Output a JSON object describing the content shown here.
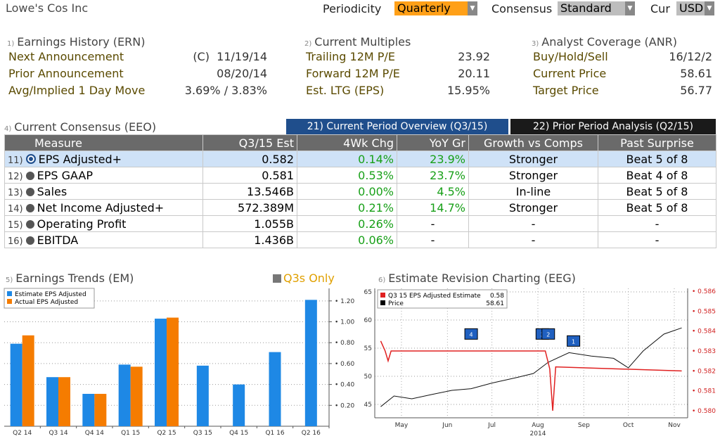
{
  "header": {
    "title": "Lowe's Cos Inc",
    "periodicity_label": "Periodicity",
    "periodicity_value": "Quarterly",
    "consensus_label": "Consensus",
    "consensus_value": "Standard",
    "cur_label": "Cur",
    "cur_value": "USD"
  },
  "earnings_history": {
    "number": "1)",
    "title": "Earnings History (ERN)",
    "rows": [
      {
        "label": "Next Announcement",
        "value": "(C)  11/19/14"
      },
      {
        "label": "Prior Announcement",
        "value": "08/20/14"
      },
      {
        "label": "Avg/Implied 1 Day Move",
        "value": "3.69% / 3.83%"
      }
    ]
  },
  "current_multiples": {
    "number": "2)",
    "title": "Current Multiples",
    "rows": [
      {
        "label": "Trailing 12M P/E",
        "value": "23.92"
      },
      {
        "label": "Forward 12M P/E",
        "value": "20.11"
      },
      {
        "label": "Est. LTG (EPS)",
        "value": "15.95%"
      }
    ]
  },
  "analyst_coverage": {
    "number": "3)",
    "title": "Analyst Coverage (ANR)",
    "rows": [
      {
        "label": "Buy/Hold/Sell",
        "value": "16/12/2"
      },
      {
        "label": "Current Price",
        "value": "58.61"
      },
      {
        "label": "Target Price",
        "value": "56.77"
      }
    ]
  },
  "consensus": {
    "number": "4)",
    "title": "Current Consensus (EEO)",
    "tab_current": "21) Current Period Overview (Q3/15)",
    "tab_prior": "22) Prior Period Analysis (Q2/15)",
    "columns": [
      "Measure",
      "Q3/15 Est",
      "4Wk Chg",
      "YoY Gr",
      "Growth vs Comps",
      "Past Surprise"
    ],
    "rows": [
      {
        "num": "11)",
        "measure": "EPS Adjusted+",
        "est": "0.582",
        "chg": "0.14%",
        "yoy": "23.9%",
        "comps": "Stronger",
        "surprise": "Beat 5 of 8"
      },
      {
        "num": "12)",
        "measure": "EPS GAAP",
        "est": "0.581",
        "chg": "0.53%",
        "yoy": "23.7%",
        "comps": "Stronger",
        "surprise": "Beat 4 of 8"
      },
      {
        "num": "13)",
        "measure": "Sales",
        "est": "13.546B",
        "chg": "0.00%",
        "yoy": "4.5%",
        "comps": "In-line",
        "surprise": "Beat 5 of 8"
      },
      {
        "num": "14)",
        "measure": "Net Income Adjusted+",
        "est": "572.389M",
        "chg": "0.21%",
        "yoy": "14.7%",
        "comps": "Stronger",
        "surprise": "Beat 5 of 8"
      },
      {
        "num": "15)",
        "measure": "Operating Profit",
        "est": "1.055B",
        "chg": "0.26%",
        "yoy": "-",
        "comps": "-",
        "surprise": "-"
      },
      {
        "num": "16)",
        "measure": "EBITDA",
        "est": "1.436B",
        "chg": "0.06%",
        "yoy": "-",
        "comps": "-",
        "surprise": "-"
      }
    ]
  },
  "earnings_trends": {
    "number": "5)",
    "title": "Earnings Trends (EM)",
    "toggle_label": "Q3s Only"
  },
  "estimate_revision": {
    "number": "6)",
    "title": "Estimate Revision Charting (EEG)"
  },
  "chart_data": [
    {
      "type": "bar",
      "categories": [
        "Q2 14",
        "Q3 14",
        "Q4 14",
        "Q1 15",
        "Q2 15",
        "Q3 15",
        "Q4 15",
        "Q1 16",
        "Q2 16"
      ],
      "series": [
        {
          "name": "Estimate EPS Adjusted",
          "color": "#1e88e5",
          "values": [
            0.79,
            0.47,
            0.31,
            0.59,
            1.03,
            0.58,
            0.4,
            0.71,
            1.21
          ]
        },
        {
          "name": "Actual EPS Adjusted",
          "color": "#f57c00",
          "values": [
            0.87,
            0.47,
            0.31,
            0.57,
            1.04,
            null,
            null,
            null,
            null
          ]
        }
      ],
      "y_ticks": [
        "1.20",
        "1.00",
        "0.80",
        "0.60",
        "0.40",
        "0.20"
      ],
      "ylim": [
        0.0,
        1.32
      ],
      "legend": "top-left",
      "grid": true
    },
    {
      "type": "line",
      "x_ticks": [
        "May",
        "Jun",
        "Jul",
        "Aug",
        "Sep",
        "Oct",
        "Nov"
      ],
      "x_sublabel": "2014",
      "left_ticks": [
        "65",
        "60",
        "55",
        "50",
        "45"
      ],
      "right_ticks": [
        "0.586",
        "0.585",
        "0.584",
        "0.583",
        "0.582",
        "0.581",
        "0.580"
      ],
      "legend": [
        {
          "name": "Q3 15 EPS Adjusted Estimate",
          "value": "0.58",
          "color": "#e02020"
        },
        {
          "name": "Price",
          "value": "58.61",
          "color": "#000000"
        }
      ],
      "estimate_series": [
        {
          "date": "2014-05-01",
          "value": 0.5835
        },
        {
          "date": "2014-05-04",
          "value": 0.583
        },
        {
          "date": "2014-05-06",
          "value": 0.5825
        },
        {
          "date": "2014-05-08",
          "value": 0.583
        },
        {
          "date": "2014-08-20",
          "value": 0.583
        },
        {
          "date": "2014-08-23",
          "value": 0.5821
        },
        {
          "date": "2014-08-25",
          "value": 0.58
        },
        {
          "date": "2014-08-27",
          "value": 0.5822
        },
        {
          "date": "2014-11-20",
          "value": 0.582
        }
      ],
      "price_series": [
        {
          "date": "2014-05-01",
          "value": 44.6
        },
        {
          "date": "2014-05-10",
          "value": 46.5
        },
        {
          "date": "2014-05-22",
          "value": 46.0
        },
        {
          "date": "2014-06-05",
          "value": 46.8
        },
        {
          "date": "2014-06-18",
          "value": 47.5
        },
        {
          "date": "2014-07-01",
          "value": 47.8
        },
        {
          "date": "2014-07-15",
          "value": 48.8
        },
        {
          "date": "2014-08-01",
          "value": 49.8
        },
        {
          "date": "2014-08-12",
          "value": 50.5
        },
        {
          "date": "2014-08-22",
          "value": 52.5
        },
        {
          "date": "2014-09-05",
          "value": 54.2
        },
        {
          "date": "2014-09-20",
          "value": 53.6
        },
        {
          "date": "2014-10-05",
          "value": 53.2
        },
        {
          "date": "2014-10-15",
          "value": 51.5
        },
        {
          "date": "2014-10-25",
          "value": 54.5
        },
        {
          "date": "2014-11-08",
          "value": 57.5
        },
        {
          "date": "2014-11-20",
          "value": 58.6
        }
      ],
      "markers": [
        {
          "date": "2014-07-01",
          "label": "4"
        },
        {
          "date": "2014-08-18",
          "label": "3"
        },
        {
          "date": "2014-08-22",
          "label": "2"
        },
        {
          "date": "2014-09-08",
          "label": "1"
        }
      ]
    }
  ]
}
